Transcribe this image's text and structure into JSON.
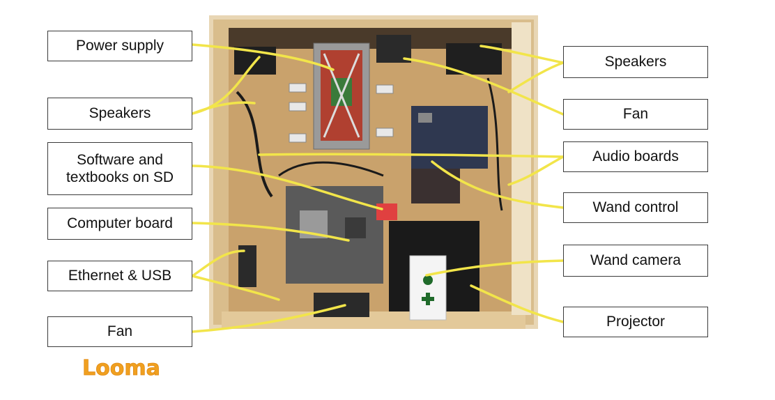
{
  "colors": {
    "leader": "#f2e54a",
    "wood": "#c9a26c",
    "frame": "#e8d6b4",
    "logo": "#f0a020",
    "border": "#3a3a3a"
  },
  "labels": {
    "power_supply": "Power supply",
    "speakers_left": "Speakers",
    "software": "Software and textbooks on SD",
    "computer_board": "Computer board",
    "ethernet_usb": "Ethernet & USB",
    "fan_left": "Fan",
    "speakers_right": "Speakers",
    "fan_right": "Fan",
    "audio_boards": "Audio boards",
    "wand_control": "Wand control",
    "wand_camera": "Wand camera",
    "projector": "Projector"
  },
  "logo_text": "Looma"
}
